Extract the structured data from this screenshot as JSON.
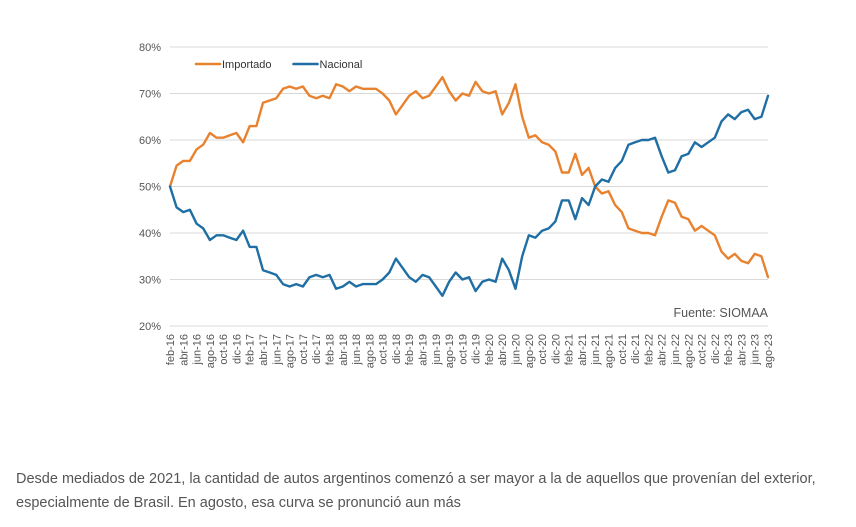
{
  "chart_data": {
    "type": "line",
    "title": "",
    "xlabel": "",
    "ylabel": "",
    "ylim": [
      20,
      80
    ],
    "yticks": [
      "20%",
      "30%",
      "40%",
      "50%",
      "60%",
      "70%",
      "80%"
    ],
    "x_tick_labels": [
      "feb-16",
      "abr-16",
      "jun-16",
      "ago-16",
      "oct-16",
      "dic-16",
      "feb-17",
      "abr-17",
      "jun-17",
      "ago-17",
      "oct-17",
      "dic-17",
      "feb-18",
      "abr-18",
      "jun-18",
      "ago-18",
      "oct-18",
      "dic-18",
      "feb-19",
      "abr-19",
      "jun-19",
      "ago-19",
      "oct-19",
      "dic-19",
      "feb-20",
      "abr-20",
      "jun-20",
      "ago-20",
      "oct-20",
      "dic-20",
      "feb-21",
      "abr-21",
      "jun-21",
      "ago-21",
      "oct-21",
      "dic-21",
      "feb-22",
      "abr-22",
      "jun-22",
      "ago-22",
      "oct-22",
      "dic-22",
      "feb-23",
      "abr-23",
      "jun-23",
      "ago-23"
    ],
    "months": [
      "feb-16",
      "mar-16",
      "abr-16",
      "may-16",
      "jun-16",
      "jul-16",
      "ago-16",
      "sep-16",
      "oct-16",
      "nov-16",
      "dic-16",
      "ene-17",
      "feb-17",
      "mar-17",
      "abr-17",
      "may-17",
      "jun-17",
      "jul-17",
      "ago-17",
      "sep-17",
      "oct-17",
      "nov-17",
      "dic-17",
      "ene-18",
      "feb-18",
      "mar-18",
      "abr-18",
      "may-18",
      "jun-18",
      "jul-18",
      "ago-18",
      "sep-18",
      "oct-18",
      "nov-18",
      "dic-18",
      "ene-19",
      "feb-19",
      "mar-19",
      "abr-19",
      "may-19",
      "jun-19",
      "jul-19",
      "ago-19",
      "sep-19",
      "oct-19",
      "nov-19",
      "dic-19",
      "ene-20",
      "feb-20",
      "mar-20",
      "abr-20",
      "may-20",
      "jun-20",
      "jul-20",
      "ago-20",
      "sep-20",
      "oct-20",
      "nov-20",
      "dic-20",
      "ene-21",
      "feb-21",
      "mar-21",
      "abr-21",
      "may-21",
      "jun-21",
      "jul-21",
      "ago-21",
      "sep-21",
      "oct-21",
      "nov-21",
      "dic-21",
      "ene-22",
      "feb-22",
      "mar-22",
      "abr-22",
      "may-22",
      "jun-22",
      "jul-22",
      "ago-22",
      "sep-22",
      "oct-22",
      "nov-22",
      "dic-22",
      "ene-23",
      "feb-23",
      "mar-23",
      "abr-23",
      "may-23",
      "jun-23",
      "jul-23",
      "ago-23"
    ],
    "series": [
      {
        "name": "Importado",
        "color": "#e8822e",
        "values": [
          50,
          54.5,
          55.5,
          55.5,
          58,
          59,
          61.5,
          60.5,
          60.5,
          61,
          61.5,
          59.5,
          63,
          63,
          68,
          68.5,
          69,
          71,
          71.5,
          71,
          71.5,
          69.5,
          69,
          69.5,
          69,
          72,
          71.5,
          70.5,
          71.5,
          71,
          71,
          71,
          70,
          68.5,
          65.5,
          67.5,
          69.5,
          70.5,
          69,
          69.5,
          71.5,
          73.5,
          70.5,
          68.5,
          70,
          69.5,
          72.5,
          70.5,
          70,
          70.5,
          65.5,
          68,
          72,
          65,
          60.5,
          61,
          59.5,
          59,
          57.5,
          53,
          53,
          57,
          52.5,
          54,
          50,
          48.5,
          49,
          46,
          44.5,
          41,
          40.5,
          40,
          40,
          39.5,
          43.5,
          47,
          46.5,
          43.5,
          43,
          40.5,
          41.5,
          40.5,
          39.5,
          36,
          34.5,
          35.5,
          34,
          33.5,
          35.5,
          35,
          30.5
        ]
      },
      {
        "name": "Nacional",
        "color": "#1f6fa4",
        "values": [
          50,
          45.5,
          44.5,
          45,
          42,
          41,
          38.5,
          39.5,
          39.5,
          39,
          38.5,
          40.5,
          37,
          37,
          32,
          31.5,
          31,
          29,
          28.5,
          29,
          28.5,
          30.5,
          31,
          30.5,
          31,
          28,
          28.5,
          29.5,
          28.5,
          29,
          29,
          29,
          30,
          31.5,
          34.5,
          32.5,
          30.5,
          29.5,
          31,
          30.5,
          28.5,
          26.5,
          29.5,
          31.5,
          30,
          30.5,
          27.5,
          29.5,
          30,
          29.5,
          34.5,
          32,
          28,
          35,
          39.5,
          39,
          40.5,
          41,
          42.5,
          47,
          47,
          43,
          47.5,
          46,
          50,
          51.5,
          51,
          54,
          55.5,
          59,
          59.5,
          60,
          60,
          60.5,
          56.5,
          53,
          53.5,
          56.5,
          57,
          59.5,
          58.5,
          59.5,
          60.5,
          64,
          65.5,
          64.5,
          66,
          66.5,
          64.5,
          65,
          69.5
        ]
      }
    ],
    "legend_position": "top-left",
    "grid": true,
    "annotation": "Fuente: SIOMAA"
  },
  "caption": "Desde mediados de 2021, la cantidad de autos argentinos comenzó a ser mayor a la de aquellos que provenían del exterior, especialmente de Brasil. En agosto, esa curva se pronunció aun más"
}
